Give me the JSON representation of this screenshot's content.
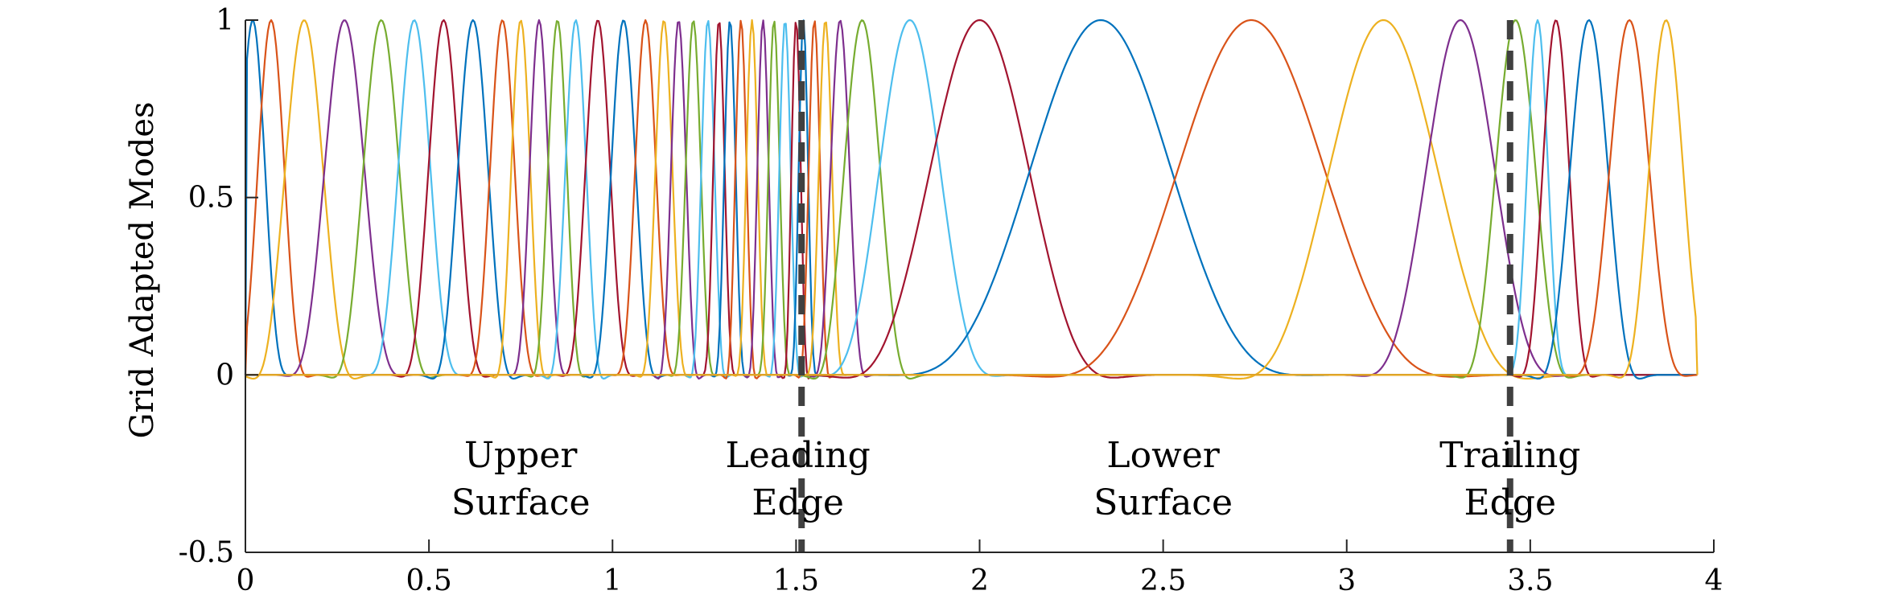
{
  "chart_data": {
    "type": "line",
    "title": "",
    "xlabel": "",
    "ylabel": "Grid Adapted Modes",
    "xlim": [
      0,
      4
    ],
    "ylim": [
      -0.5,
      1
    ],
    "x_ticks": [
      0,
      0.5,
      1,
      1.5,
      2,
      2.5,
      3,
      3.5,
      4
    ],
    "x_tick_labels": [
      "0",
      "0.5",
      "1",
      "1.5",
      "2",
      "2.5",
      "3",
      "3.5",
      "4"
    ],
    "y_ticks": [
      -0.5,
      0,
      0.5,
      1
    ],
    "y_tick_labels": [
      "-0.5",
      "0",
      "0.5",
      "1"
    ],
    "grid": false,
    "legend": "none",
    "colors": [
      "#0072BD",
      "#D95319",
      "#EDB120",
      "#7E2F8E",
      "#77AC30",
      "#4DBEEE",
      "#A2142F"
    ],
    "series_style": "Gaussian-like modes of peak value 1 whose centres are clustered near the leading and trailing edges; small negative lobes around y = 0",
    "mode_centers": [
      0.02,
      0.07,
      0.16,
      0.27,
      0.37,
      0.46,
      0.54,
      0.62,
      0.7,
      0.75,
      0.8,
      0.85,
      0.9,
      0.96,
      1.03,
      1.09,
      1.14,
      1.18,
      1.22,
      1.26,
      1.29,
      1.32,
      1.35,
      1.38,
      1.41,
      1.44,
      1.47,
      1.5,
      1.52,
      1.55,
      1.58,
      1.62,
      1.68,
      1.81,
      2.0,
      2.33,
      2.74,
      3.1,
      3.31,
      3.46,
      3.52,
      3.57,
      3.66,
      3.77,
      3.87
    ],
    "mode_peak": 1,
    "dividers": [
      {
        "x": 1.515,
        "style": "dashed"
      },
      {
        "x": 3.445,
        "style": "dashed"
      }
    ],
    "annotations": [
      {
        "x": 0.75,
        "lines": [
          "Upper",
          "Surface"
        ]
      },
      {
        "x": 1.505,
        "lines": [
          "Leading",
          "Edge"
        ]
      },
      {
        "x": 2.5,
        "lines": [
          "Lower",
          "Surface"
        ]
      },
      {
        "x": 3.445,
        "lines": [
          "Trailing",
          "Edge"
        ]
      }
    ]
  }
}
